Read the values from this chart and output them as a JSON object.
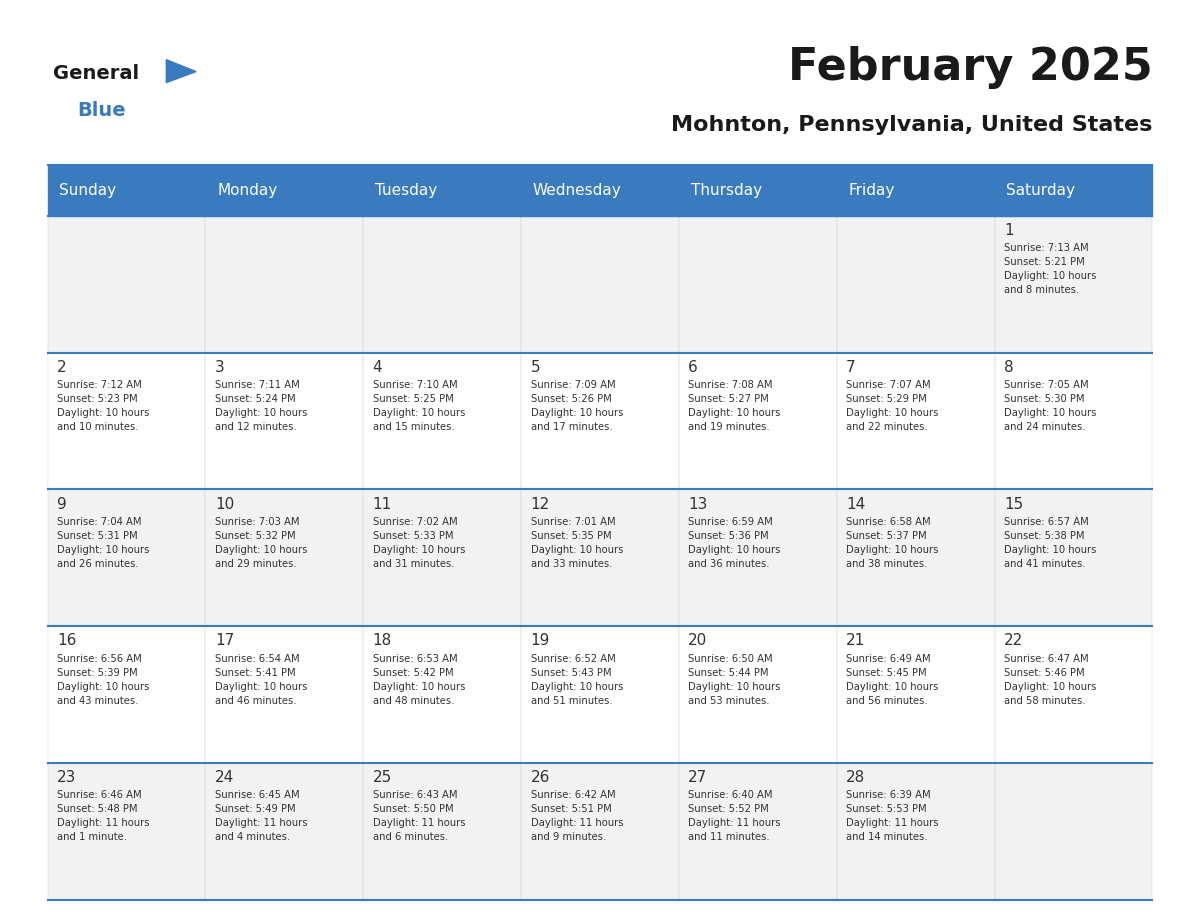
{
  "title": "February 2025",
  "subtitle": "Mohnton, Pennsylvania, United States",
  "header_color": "#3a7bbf",
  "header_text_color": "#ffffff",
  "cell_bg_color": "#f2f2f2",
  "cell_bg_alt": "#ffffff",
  "day_number_color": "#333333",
  "text_color": "#333333",
  "line_color": "#3a7bbf",
  "days_of_week": [
    "Sunday",
    "Monday",
    "Tuesday",
    "Wednesday",
    "Thursday",
    "Friday",
    "Saturday"
  ],
  "weeks": [
    [
      {
        "day": "",
        "info": ""
      },
      {
        "day": "",
        "info": ""
      },
      {
        "day": "",
        "info": ""
      },
      {
        "day": "",
        "info": ""
      },
      {
        "day": "",
        "info": ""
      },
      {
        "day": "",
        "info": ""
      },
      {
        "day": "1",
        "info": "Sunrise: 7:13 AM\nSunset: 5:21 PM\nDaylight: 10 hours\nand 8 minutes."
      }
    ],
    [
      {
        "day": "2",
        "info": "Sunrise: 7:12 AM\nSunset: 5:23 PM\nDaylight: 10 hours\nand 10 minutes."
      },
      {
        "day": "3",
        "info": "Sunrise: 7:11 AM\nSunset: 5:24 PM\nDaylight: 10 hours\nand 12 minutes."
      },
      {
        "day": "4",
        "info": "Sunrise: 7:10 AM\nSunset: 5:25 PM\nDaylight: 10 hours\nand 15 minutes."
      },
      {
        "day": "5",
        "info": "Sunrise: 7:09 AM\nSunset: 5:26 PM\nDaylight: 10 hours\nand 17 minutes."
      },
      {
        "day": "6",
        "info": "Sunrise: 7:08 AM\nSunset: 5:27 PM\nDaylight: 10 hours\nand 19 minutes."
      },
      {
        "day": "7",
        "info": "Sunrise: 7:07 AM\nSunset: 5:29 PM\nDaylight: 10 hours\nand 22 minutes."
      },
      {
        "day": "8",
        "info": "Sunrise: 7:05 AM\nSunset: 5:30 PM\nDaylight: 10 hours\nand 24 minutes."
      }
    ],
    [
      {
        "day": "9",
        "info": "Sunrise: 7:04 AM\nSunset: 5:31 PM\nDaylight: 10 hours\nand 26 minutes."
      },
      {
        "day": "10",
        "info": "Sunrise: 7:03 AM\nSunset: 5:32 PM\nDaylight: 10 hours\nand 29 minutes."
      },
      {
        "day": "11",
        "info": "Sunrise: 7:02 AM\nSunset: 5:33 PM\nDaylight: 10 hours\nand 31 minutes."
      },
      {
        "day": "12",
        "info": "Sunrise: 7:01 AM\nSunset: 5:35 PM\nDaylight: 10 hours\nand 33 minutes."
      },
      {
        "day": "13",
        "info": "Sunrise: 6:59 AM\nSunset: 5:36 PM\nDaylight: 10 hours\nand 36 minutes."
      },
      {
        "day": "14",
        "info": "Sunrise: 6:58 AM\nSunset: 5:37 PM\nDaylight: 10 hours\nand 38 minutes."
      },
      {
        "day": "15",
        "info": "Sunrise: 6:57 AM\nSunset: 5:38 PM\nDaylight: 10 hours\nand 41 minutes."
      }
    ],
    [
      {
        "day": "16",
        "info": "Sunrise: 6:56 AM\nSunset: 5:39 PM\nDaylight: 10 hours\nand 43 minutes."
      },
      {
        "day": "17",
        "info": "Sunrise: 6:54 AM\nSunset: 5:41 PM\nDaylight: 10 hours\nand 46 minutes."
      },
      {
        "day": "18",
        "info": "Sunrise: 6:53 AM\nSunset: 5:42 PM\nDaylight: 10 hours\nand 48 minutes."
      },
      {
        "day": "19",
        "info": "Sunrise: 6:52 AM\nSunset: 5:43 PM\nDaylight: 10 hours\nand 51 minutes."
      },
      {
        "day": "20",
        "info": "Sunrise: 6:50 AM\nSunset: 5:44 PM\nDaylight: 10 hours\nand 53 minutes."
      },
      {
        "day": "21",
        "info": "Sunrise: 6:49 AM\nSunset: 5:45 PM\nDaylight: 10 hours\nand 56 minutes."
      },
      {
        "day": "22",
        "info": "Sunrise: 6:47 AM\nSunset: 5:46 PM\nDaylight: 10 hours\nand 58 minutes."
      }
    ],
    [
      {
        "day": "23",
        "info": "Sunrise: 6:46 AM\nSunset: 5:48 PM\nDaylight: 11 hours\nand 1 minute."
      },
      {
        "day": "24",
        "info": "Sunrise: 6:45 AM\nSunset: 5:49 PM\nDaylight: 11 hours\nand 4 minutes."
      },
      {
        "day": "25",
        "info": "Sunrise: 6:43 AM\nSunset: 5:50 PM\nDaylight: 11 hours\nand 6 minutes."
      },
      {
        "day": "26",
        "info": "Sunrise: 6:42 AM\nSunset: 5:51 PM\nDaylight: 11 hours\nand 9 minutes."
      },
      {
        "day": "27",
        "info": "Sunrise: 6:40 AM\nSunset: 5:52 PM\nDaylight: 11 hours\nand 11 minutes."
      },
      {
        "day": "28",
        "info": "Sunrise: 6:39 AM\nSunset: 5:53 PM\nDaylight: 11 hours\nand 14 minutes."
      },
      {
        "day": "",
        "info": ""
      }
    ]
  ],
  "logo_text_general": "General",
  "logo_text_blue": "Blue",
  "logo_color_general": "#1a1a1a",
  "logo_color_blue": "#3a7bbf",
  "logo_triangle_color": "#3a7bbf"
}
